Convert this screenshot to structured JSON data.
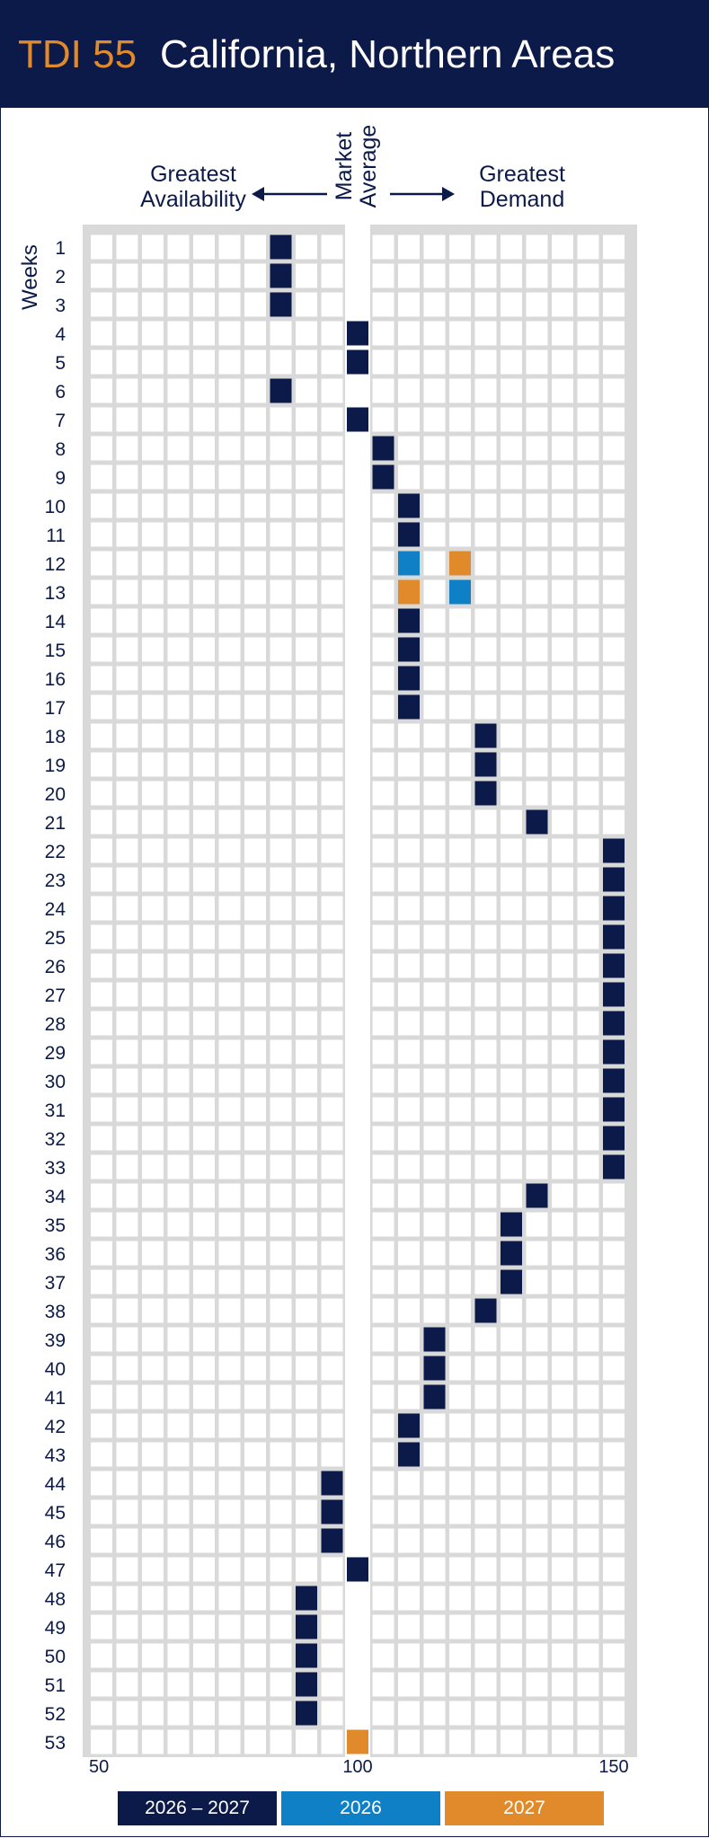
{
  "header": {
    "code": "TDI 55",
    "region": "California, Northern Areas"
  },
  "labels": {
    "greatest_availability": "Greatest Availability",
    "market_average": "Market Average",
    "greatest_demand": "Greatest Demand",
    "weeks": "Weeks"
  },
  "colors": {
    "navy": "#0c1a4a",
    "blue": "#0f7fc6",
    "orange": "#e08a2c",
    "cell": "#dddddd",
    "background": "#d9d9d9"
  },
  "chart_data": {
    "type": "heatmap",
    "title": "California, Northern Areas",
    "ylabel": "Weeks",
    "xlim": [
      50,
      150
    ],
    "x_ticks": [
      "50",
      "100",
      "150"
    ],
    "x_step": 5,
    "weeks": [
      1,
      2,
      3,
      4,
      5,
      6,
      7,
      8,
      9,
      10,
      11,
      12,
      13,
      14,
      15,
      16,
      17,
      18,
      19,
      20,
      21,
      22,
      23,
      24,
      25,
      26,
      27,
      28,
      29,
      30,
      31,
      32,
      33,
      34,
      35,
      36,
      37,
      38,
      39,
      40,
      41,
      42,
      43,
      44,
      45,
      46,
      47,
      48,
      49,
      50,
      51,
      52,
      53
    ],
    "series": [
      {
        "name": "2026 – 2027",
        "color": "#0c1a4a",
        "values": [
          86,
          86,
          86,
          101,
          101,
          86,
          101,
          106,
          106,
          111,
          111,
          null,
          null,
          111,
          111,
          111,
          111,
          126,
          126,
          126,
          136,
          151,
          151,
          151,
          151,
          151,
          151,
          151,
          151,
          151,
          151,
          151,
          151,
          136,
          131,
          131,
          131,
          126,
          116,
          116,
          116,
          111,
          111,
          96,
          96,
          96,
          101,
          91,
          91,
          91,
          91,
          91,
          null
        ]
      },
      {
        "name": "2026",
        "color": "#0f7fc6",
        "values": [
          null,
          null,
          null,
          null,
          null,
          null,
          null,
          null,
          null,
          null,
          null,
          111,
          121,
          null,
          null,
          null,
          null,
          null,
          null,
          null,
          null,
          null,
          null,
          null,
          null,
          null,
          null,
          null,
          null,
          null,
          null,
          null,
          null,
          null,
          null,
          null,
          null,
          null,
          null,
          null,
          null,
          null,
          null,
          null,
          null,
          null,
          null,
          null,
          null,
          null,
          null,
          null,
          null
        ]
      },
      {
        "name": "2027",
        "color": "#e08a2c",
        "values": [
          null,
          null,
          null,
          null,
          null,
          null,
          null,
          null,
          null,
          null,
          null,
          121,
          111,
          null,
          null,
          null,
          null,
          null,
          null,
          null,
          null,
          null,
          null,
          null,
          null,
          null,
          null,
          null,
          null,
          null,
          null,
          null,
          null,
          null,
          null,
          null,
          null,
          null,
          null,
          null,
          null,
          null,
          null,
          null,
          null,
          null,
          null,
          null,
          null,
          null,
          null,
          null,
          101
        ]
      }
    ]
  }
}
